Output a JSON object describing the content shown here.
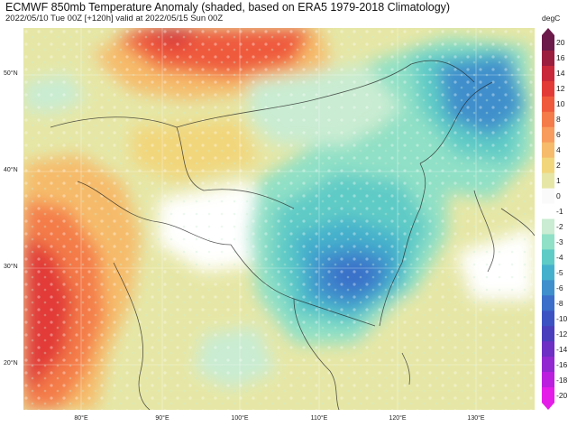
{
  "header": {
    "title": "ECMWF 850mb Temperature Anomaly (shaded, based on ERA5 1979-2018 Climatology)",
    "subtitle": "2022/05/10 Tue 00Z [+120h] valid at 2022/05/15 Sun 00Z"
  },
  "map": {
    "lat_labels": [
      "50°N",
      "40°N",
      "30°N",
      "20°N"
    ],
    "lon_labels": [
      "80°E",
      "90°E",
      "100°E",
      "110°E",
      "120°E",
      "130°E"
    ]
  },
  "colorbar": {
    "unit": "degC",
    "ticks": [
      "20",
      "16",
      "14",
      "12",
      "10",
      "8",
      "6",
      "4",
      "2",
      "1",
      "0",
      "-1",
      "-2",
      "-3",
      "-4",
      "-5",
      "-6",
      "-8",
      "-10",
      "-12",
      "-14",
      "-16",
      "-18",
      "-20"
    ],
    "colors": [
      "#6b1a4a",
      "#9b1e3f",
      "#c8283a",
      "#e23b37",
      "#ef5a3c",
      "#f47b4a",
      "#f79c5c",
      "#f6bb6b",
      "#f2d67c",
      "#e6e7a6",
      "#fafafa",
      "#ffffff",
      "#c9ecd2",
      "#8fe0c6",
      "#5fcbc6",
      "#45b0cc",
      "#3f8fcc",
      "#3b6fc9",
      "#3d52c2",
      "#4a3ebd",
      "#6d2fc4",
      "#9228d0",
      "#bb20de",
      "#e41ee8"
    ]
  }
}
